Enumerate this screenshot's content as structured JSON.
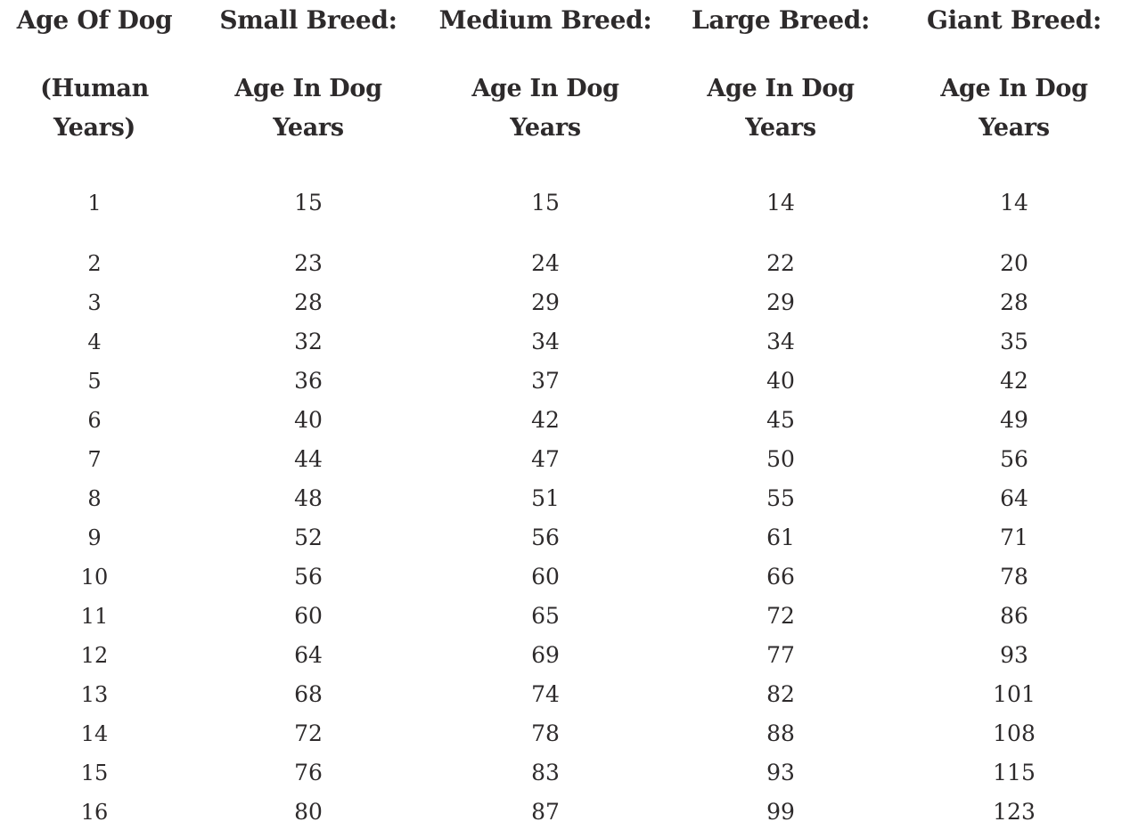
{
  "table": {
    "columns": [
      {
        "title": "Age Of Dog",
        "sub1": "(Human",
        "sub2": "Years)"
      },
      {
        "title": "Small Breed:",
        "sub1": "Age In Dog",
        "sub2": "Years"
      },
      {
        "title": "Medium Breed:",
        "sub1": "Age In Dog",
        "sub2": "Years"
      },
      {
        "title": "Large Breed:",
        "sub1": "Age In Dog",
        "sub2": "Years"
      },
      {
        "title": "Giant Breed:",
        "sub1": "Age In Dog",
        "sub2": "Years"
      }
    ],
    "text_color": "#2d2a2b",
    "background_color": "#ffffff"
  },
  "chart_data": {
    "type": "table",
    "columns": [
      "Age Of Dog (Human Years)",
      "Small Breed: Age In Dog Years",
      "Medium Breed: Age In Dog Years",
      "Large Breed: Age In Dog Years",
      "Giant Breed: Age In Dog Years"
    ],
    "rows": [
      [
        1,
        15,
        15,
        14,
        14
      ],
      [
        2,
        23,
        24,
        22,
        20
      ],
      [
        3,
        28,
        29,
        29,
        28
      ],
      [
        4,
        32,
        34,
        34,
        35
      ],
      [
        5,
        36,
        37,
        40,
        42
      ],
      [
        6,
        40,
        42,
        45,
        49
      ],
      [
        7,
        44,
        47,
        50,
        56
      ],
      [
        8,
        48,
        51,
        55,
        64
      ],
      [
        9,
        52,
        56,
        61,
        71
      ],
      [
        10,
        56,
        60,
        66,
        78
      ],
      [
        11,
        60,
        65,
        72,
        86
      ],
      [
        12,
        64,
        69,
        77,
        93
      ],
      [
        13,
        68,
        74,
        82,
        101
      ],
      [
        14,
        72,
        78,
        88,
        108
      ],
      [
        15,
        76,
        83,
        93,
        115
      ],
      [
        16,
        80,
        87,
        99,
        123
      ]
    ]
  }
}
